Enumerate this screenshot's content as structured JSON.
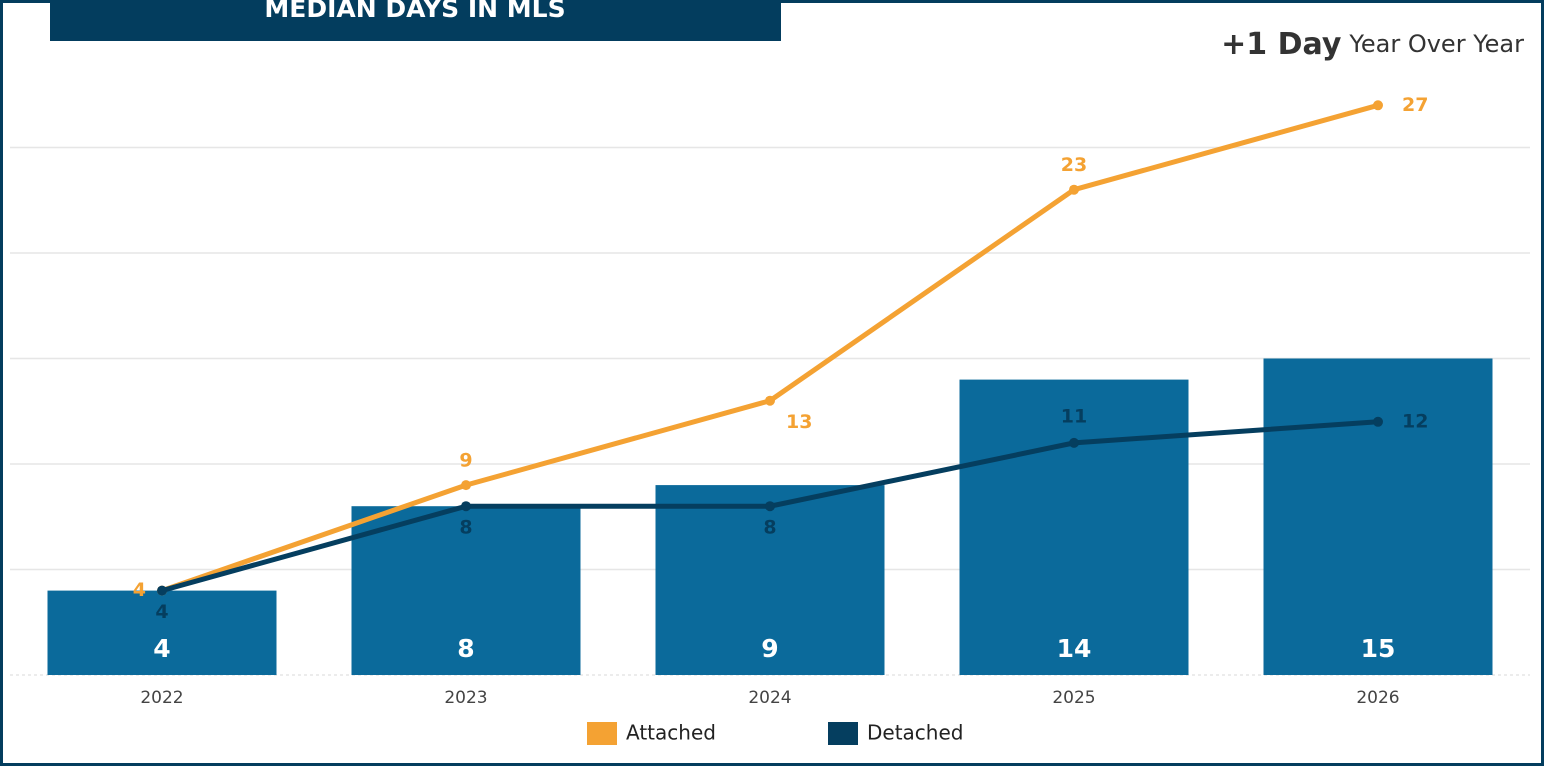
{
  "chart_data": {
    "type": "combo",
    "title": "MEDIAN DAYS IN MLS",
    "annotation": {
      "value": "+1 Day",
      "text": "Year Over Year"
    },
    "categories": [
      "2022",
      "2023",
      "2024",
      "2025",
      "2026"
    ],
    "ylim": [
      0,
      30
    ],
    "yticks": [
      0,
      5,
      10,
      15,
      20,
      25
    ],
    "grid": true,
    "legend": "bottom",
    "series": [
      {
        "type": "bar",
        "color": "#0b6a9b",
        "values": [
          4,
          8,
          9,
          14,
          15
        ]
      },
      {
        "type": "line",
        "name": "Attached",
        "color": "#f4a233",
        "values": [
          4,
          9,
          13,
          23,
          27
        ]
      },
      {
        "type": "line",
        "name": "Detached",
        "color": "#053e5f",
        "values": [
          4,
          8,
          8,
          11,
          12
        ]
      }
    ]
  }
}
